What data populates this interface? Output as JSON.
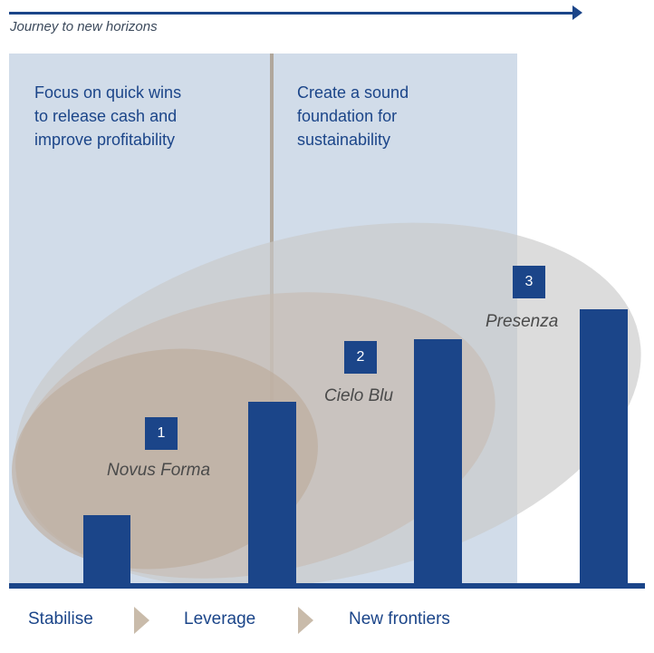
{
  "header": {
    "journey_label": "Journey to new horizons"
  },
  "phases": {
    "phase1_text": "Focus on quick wins\nto release cash and\nimprove profitability",
    "phase2_text": "Create a sound\nfoundation for\nsustainability"
  },
  "brands": [
    {
      "number": "1",
      "name": "Novus Forma"
    },
    {
      "number": "2",
      "name": "Cielo Blu"
    },
    {
      "number": "3",
      "name": "Presenza"
    }
  ],
  "stages": [
    "Stabilise",
    "Leverage",
    "New frontiers"
  ],
  "colors": {
    "navy": "#1b4589",
    "panel_blue": "#d1dce9",
    "ellipse_grey": "#c9c9c9",
    "ellipse_tan": "#c4b3a3",
    "chevron_beige": "#c9bbaa"
  }
}
